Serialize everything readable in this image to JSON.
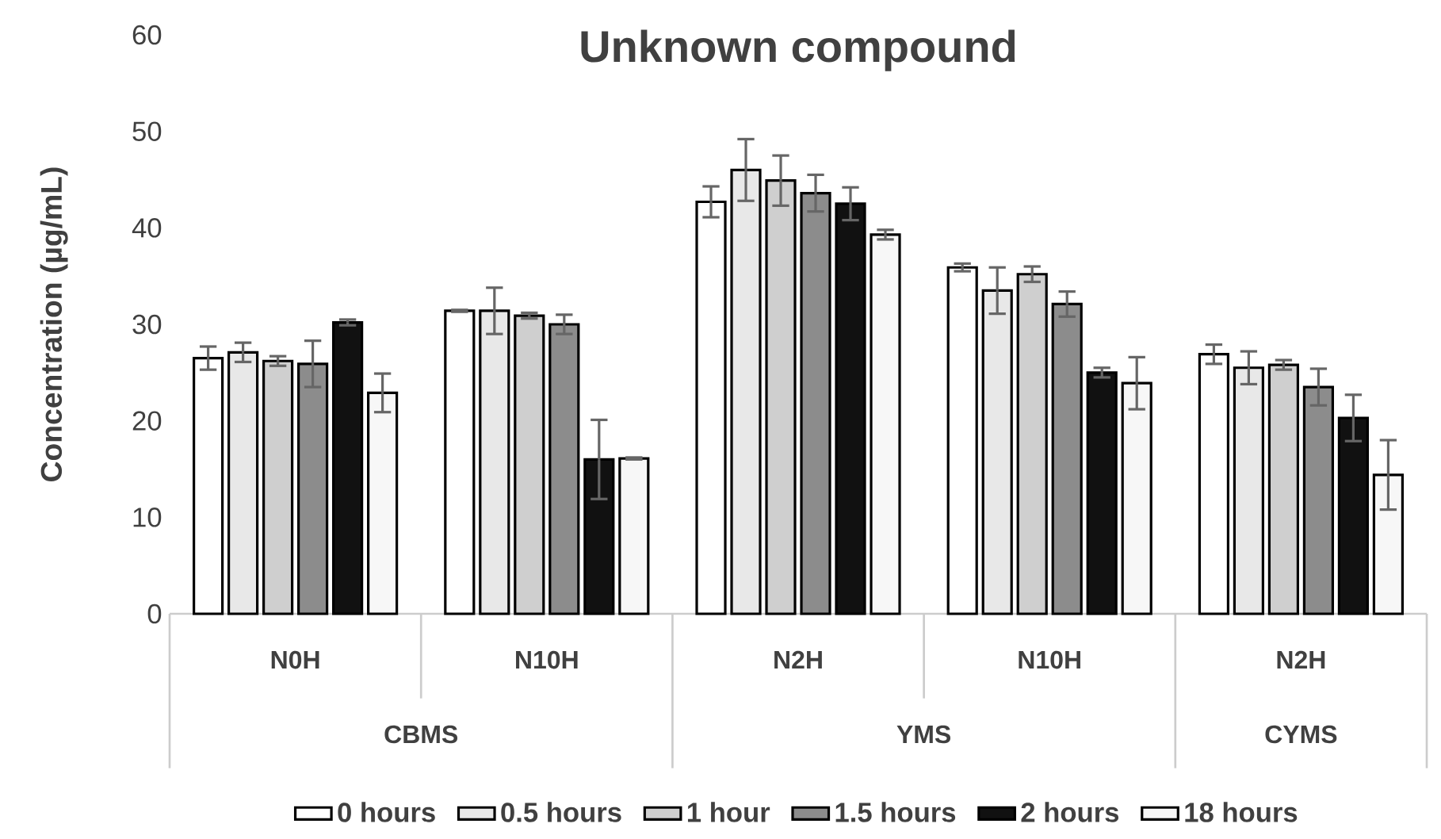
{
  "chart_data": {
    "type": "bar",
    "title": "Unknown compound",
    "ylabel": "Concentration (µg/mL)",
    "categories": [
      "N0H",
      "N10H",
      "N2H",
      "N10H",
      "N2H"
    ],
    "annotations": [
      "CBMS",
      "YMS",
      "CYMS"
    ],
    "ylim": [
      0,
      60
    ],
    "yticks": [
      0,
      10,
      20,
      30,
      40,
      50,
      60
    ],
    "grid": false,
    "legend": "bottom",
    "series": [
      {
        "name": "0 hours",
        "color": "#ffffff",
        "values": [
          26.5,
          31.4,
          42.7,
          35.9,
          26.9
        ],
        "errors": [
          1.2,
          0.1,
          1.6,
          0.4,
          1.0
        ]
      },
      {
        "name": "0.5 hours",
        "color": "#e8e8e8",
        "values": [
          27.1,
          31.4,
          46.0,
          33.5,
          25.5
        ],
        "errors": [
          1.0,
          2.4,
          3.2,
          2.4,
          1.7
        ]
      },
      {
        "name": "1 hour",
        "color": "#cfcfcf",
        "values": [
          26.2,
          30.9,
          44.9,
          35.2,
          25.8
        ],
        "errors": [
          0.5,
          0.3,
          2.6,
          0.8,
          0.5
        ]
      },
      {
        "name": "1.5 hours",
        "color": "#8c8c8c",
        "values": [
          25.9,
          30.0,
          43.6,
          32.1,
          23.5
        ],
        "errors": [
          2.4,
          1.0,
          1.9,
          1.3,
          1.9
        ]
      },
      {
        "name": "2 hours",
        "color": "#111111",
        "values": [
          30.2,
          16.0,
          42.5,
          25.0,
          20.3
        ],
        "errors": [
          0.3,
          4.1,
          1.7,
          0.5,
          2.4
        ]
      },
      {
        "name": "18 hours",
        "color": "#f7f7f7",
        "values": [
          22.9,
          16.1,
          39.3,
          23.9,
          14.4
        ],
        "errors": [
          2.0,
          0.1,
          0.5,
          2.7,
          3.6
        ]
      }
    ]
  }
}
